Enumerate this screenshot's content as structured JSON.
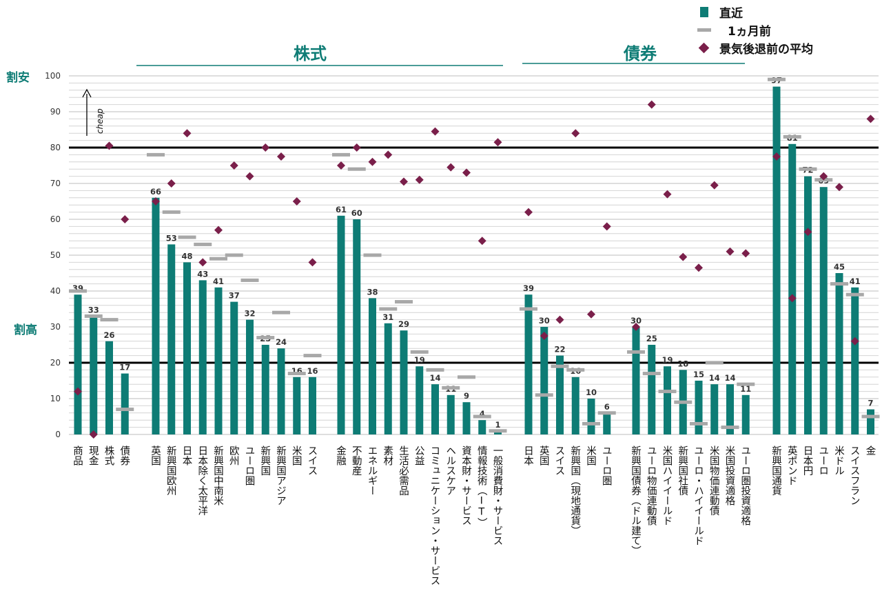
{
  "legend": {
    "current": "直近",
    "prev": "1ヵ月前",
    "avg": "景気後退前の平均"
  },
  "groups": {
    "equity": "株式",
    "bond": "債券"
  },
  "zones": {
    "cheap": "割安",
    "expensive": "割高"
  },
  "annotation": "cheap",
  "colors": {
    "bar": "#0e7c75",
    "prev": "#a8a8a8",
    "avg": "#7a1f4a",
    "accent": "#0e7c75"
  },
  "chart_data": {
    "type": "bar",
    "ylim": [
      0,
      100
    ],
    "yticks": [
      0,
      10,
      20,
      30,
      40,
      50,
      60,
      70,
      80,
      90,
      100
    ],
    "reference_lines": [
      20,
      80
    ],
    "grid": true,
    "series": [
      {
        "name": "直近",
        "values": [
          39,
          33,
          26,
          17,
          66,
          53,
          48,
          43,
          41,
          37,
          32,
          25,
          24,
          16,
          16,
          61,
          60,
          38,
          31,
          29,
          19,
          14,
          11,
          9,
          4,
          1,
          39,
          30,
          22,
          16,
          10,
          6,
          30,
          25,
          19,
          18,
          15,
          14,
          14,
          11,
          97,
          81,
          72,
          69,
          45,
          41,
          7
        ]
      },
      {
        "name": "1ヵ月前",
        "values": [
          40,
          33,
          32,
          7,
          78,
          62,
          55,
          53,
          49,
          50,
          43,
          27,
          34,
          17,
          22,
          78,
          74,
          50,
          35,
          37,
          23,
          18,
          13,
          16,
          5,
          1,
          35,
          11,
          19,
          18,
          3,
          6,
          23,
          17,
          12,
          9,
          3,
          20,
          2,
          14,
          99,
          83,
          74,
          71,
          42,
          39,
          5
        ]
      },
      {
        "name": "景気後退前の平均",
        "values": [
          12,
          0,
          80.5,
          60,
          65,
          70,
          84,
          48,
          57,
          75,
          72,
          80,
          77.5,
          65,
          48,
          75,
          80,
          76,
          78,
          70.5,
          71,
          84.5,
          74.5,
          73,
          54,
          81.5,
          62,
          27.5,
          32,
          84,
          33.5,
          58,
          30,
          92,
          67,
          49.5,
          46.5,
          69.5,
          51,
          50.5,
          77.5,
          38,
          56.5,
          72,
          69,
          26,
          88
        ]
      }
    ],
    "categories": [
      "商品",
      "現金",
      "株式",
      "債券",
      "英国",
      "新興国欧州",
      "日本",
      "日本除く太平洋",
      "新興国中南米",
      "欧州",
      "ユーロ圏",
      "新興国",
      "新興国アジア",
      "米国",
      "スイス",
      "金融",
      "不動産",
      "エネルギー",
      "素材",
      "生活必需品",
      "公益",
      "コミュニケーション・サービス",
      "ヘルスケア",
      "資本財・サービス",
      "情報技術（IT）",
      "一般消費財・サービス",
      "日本",
      "英国",
      "スイス",
      "新興国（現地通貨）",
      "米国",
      "ユーロ圏",
      "新興国債券（ドル建て）",
      "ユーロ物価連動債",
      "米国ハイイールド",
      "新興国社債",
      "ユーロ・ハイイールド",
      "米国物価連動債",
      "米国投資適格",
      "ユーロ圏投資適格",
      "新興国通貨",
      "英ポンド",
      "日本円",
      "ユーロ",
      "米ドル",
      "スイスフラン",
      "金"
    ],
    "value_labels": [
      "39",
      "33",
      "26",
      "17",
      "66",
      "53",
      "48",
      "43",
      "41",
      "37",
      "32",
      "25",
      "24",
      "16",
      "16",
      "61",
      "60",
      "38",
      "31",
      "29",
      "19",
      "14",
      "11",
      "9",
      "4",
      "1",
      "39",
      "30",
      "22",
      "16",
      "10",
      "6",
      "30",
      "25",
      "19",
      "18",
      "15",
      "14",
      "14",
      "11",
      "97",
      "81",
      "72",
      "69",
      "45",
      "41",
      "7"
    ]
  }
}
